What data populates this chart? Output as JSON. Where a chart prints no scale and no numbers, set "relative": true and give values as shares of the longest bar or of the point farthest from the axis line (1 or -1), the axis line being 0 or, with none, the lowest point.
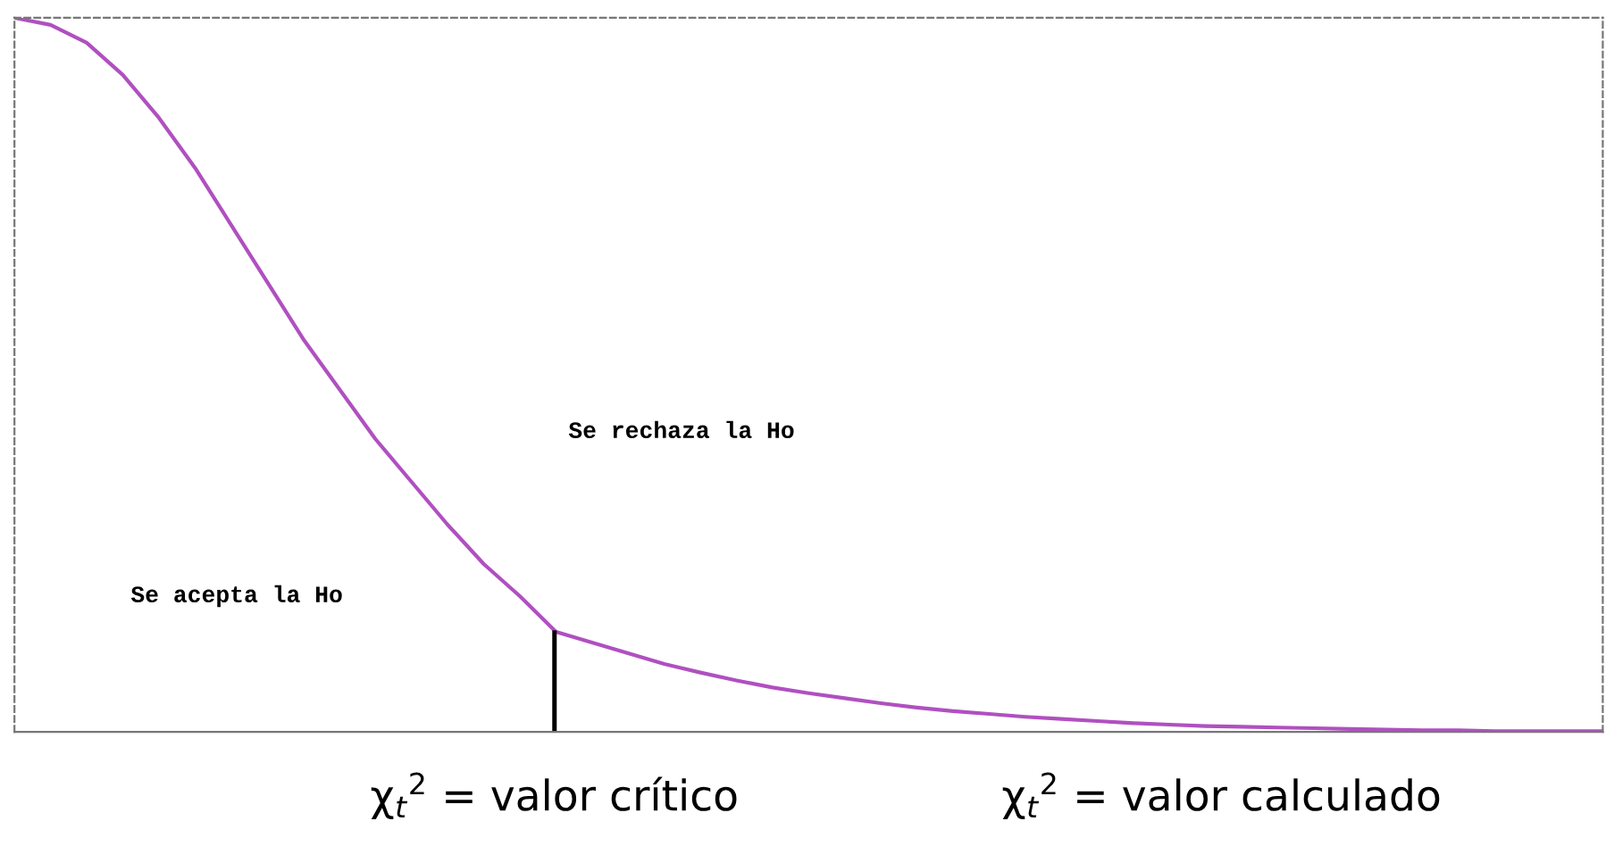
{
  "chart_data": {
    "type": "line",
    "relative": true,
    "categories": [
      null,
      null,
      null,
      null,
      null,
      null,
      null,
      null,
      null,
      null,
      null,
      null,
      null,
      null,
      null,
      null,
      null,
      null,
      null,
      null,
      null,
      null,
      null,
      null,
      null,
      null,
      null,
      null,
      null,
      null,
      null,
      null,
      null,
      null,
      null,
      null,
      null,
      null,
      null,
      null,
      null,
      null,
      null,
      null,
      null
    ],
    "series": [
      {
        "color": "#b050c0",
        "values": [
          1.0,
          0.99,
          0.965,
          0.92,
          0.86,
          0.79,
          0.71,
          0.63,
          0.55,
          0.48,
          0.41,
          0.35,
          0.29,
          0.235,
          0.19,
          0.14,
          0.125,
          0.11,
          0.095,
          0.083,
          0.072,
          0.062,
          0.054,
          0.047,
          0.04,
          0.034,
          0.029,
          0.025,
          0.021,
          0.018,
          0.015,
          0.012,
          0.01,
          0.008,
          0.007,
          0.006,
          0.005,
          0.004,
          0.003,
          0.002,
          0.002,
          0.001,
          0.001,
          0.001,
          0.001
        ]
      }
    ],
    "annotations": [
      "Se rechaza la Ho",
      "Se acepta la Ho",
      "χ$_{t}$$^{2}$ = valor crítico",
      "χ$_{t}$$^{2}$ = valor calculado"
    ]
  }
}
